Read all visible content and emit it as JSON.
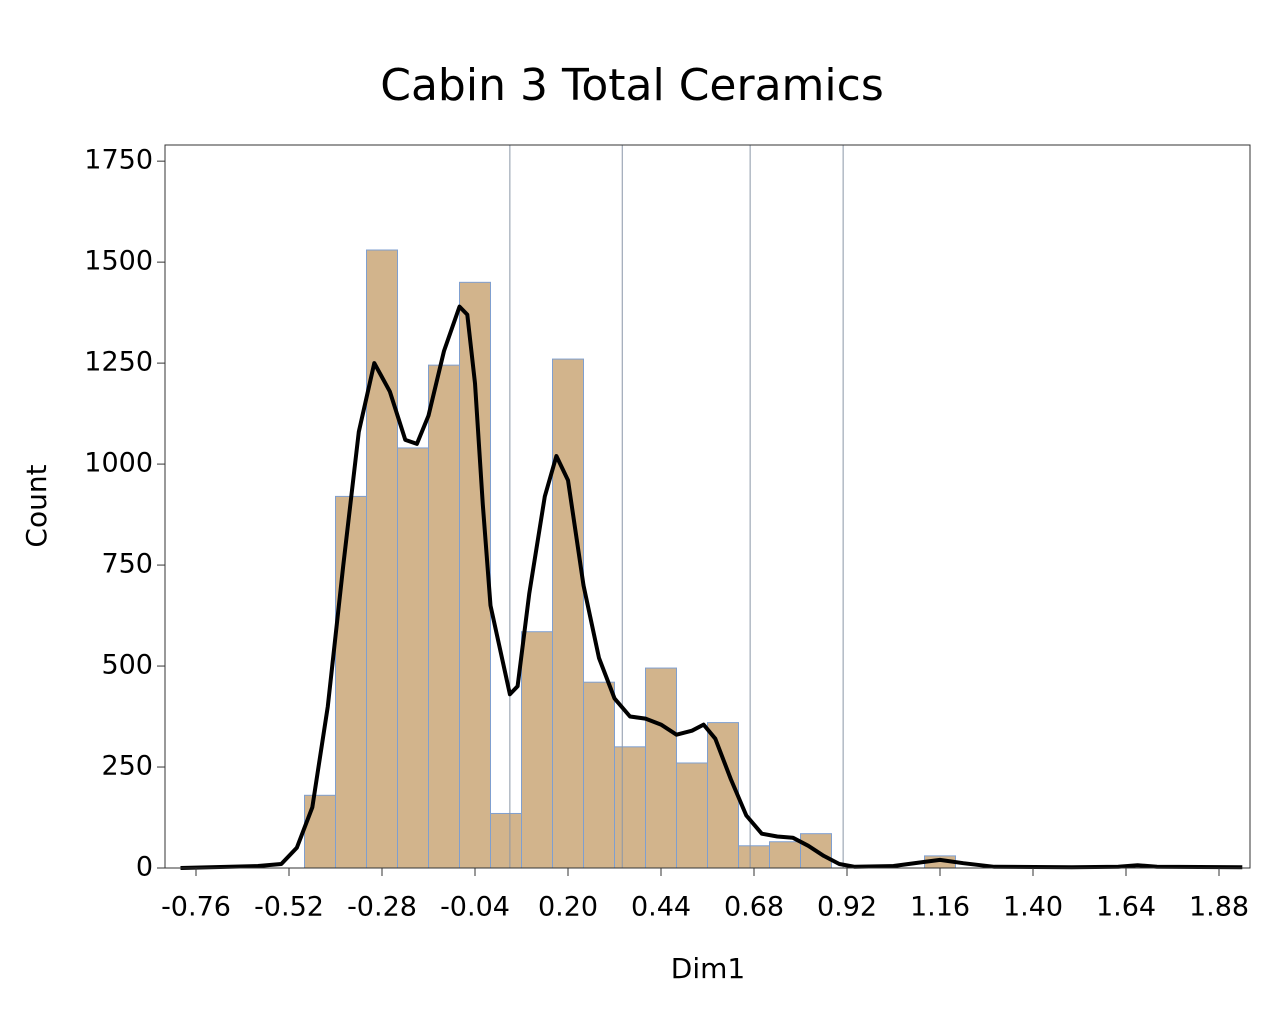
{
  "chart_data": {
    "type": "histogram",
    "title": "Cabin 3 Total Ceramics",
    "x_label": "Dim1",
    "y_label": "Count",
    "bins": [
      -0.48,
      -0.4,
      -0.32,
      -0.24,
      -0.16,
      -0.08,
      0.0,
      0.08,
      0.16,
      0.24,
      0.32,
      0.4,
      0.48,
      0.56,
      0.64,
      0.72,
      0.8,
      0.88,
      0.96,
      1.04,
      1.12,
      1.2
    ],
    "counts": [
      180,
      920,
      1530,
      1040,
      1245,
      1450,
      135,
      585,
      1260,
      460,
      300,
      495,
      260,
      360,
      55,
      65,
      85,
      0,
      0,
      0,
      30
    ],
    "color": "#d2b48c",
    "edge_color": "#7f9fcf",
    "density_curve": {
      "color": "#000000",
      "x": [
        -0.8,
        -0.6,
        -0.54,
        -0.5,
        -0.46,
        -0.42,
        -0.38,
        -0.34,
        -0.3,
        -0.26,
        -0.22,
        -0.19,
        -0.16,
        -0.12,
        -0.08,
        -0.06,
        -0.04,
        -0.02,
        0.0,
        0.05,
        0.07,
        0.1,
        0.14,
        0.17,
        0.2,
        0.24,
        0.28,
        0.32,
        0.36,
        0.4,
        0.44,
        0.48,
        0.52,
        0.55,
        0.58,
        0.62,
        0.66,
        0.7,
        0.74,
        0.78,
        0.82,
        0.86,
        0.9,
        0.94,
        1.04,
        1.12,
        1.16,
        1.22,
        1.3,
        1.5,
        1.62,
        1.67,
        1.72,
        1.94
      ],
      "y": [
        0,
        5,
        10,
        50,
        150,
        400,
        750,
        1080,
        1250,
        1180,
        1060,
        1050,
        1120,
        1280,
        1390,
        1370,
        1200,
        900,
        650,
        430,
        450,
        680,
        920,
        1020,
        960,
        700,
        520,
        420,
        375,
        370,
        355,
        330,
        340,
        355,
        320,
        220,
        130,
        85,
        78,
        75,
        55,
        30,
        10,
        3,
        5,
        15,
        20,
        12,
        3,
        2,
        3,
        7,
        3,
        2
      ]
    },
    "reference_lines": [
      0.05,
      0.34,
      0.67,
      0.91
    ],
    "reference_color": "#8a96a8",
    "xlim": [
      -0.84,
      1.96
    ],
    "xticks": [
      -0.76,
      -0.52,
      -0.28,
      -0.04,
      {
        "value": 0.2,
        "label": "0.20"
      },
      0.44,
      0.68,
      0.92,
      1.16,
      {
        "value": 1.4,
        "label": "1.40"
      },
      1.64,
      1.88
    ],
    "ylim": [
      0,
      1790
    ],
    "yticks": [
      0,
      250,
      500,
      750,
      1000,
      1250,
      1500,
      1750
    ]
  }
}
